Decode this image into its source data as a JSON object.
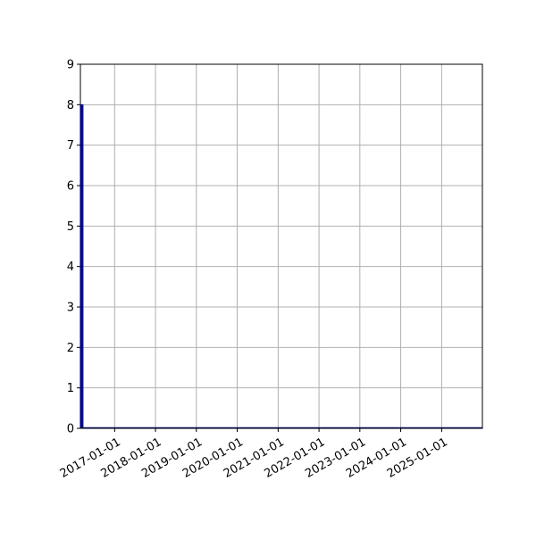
{
  "chart_data": {
    "type": "bar",
    "x": [
      "2016-03-01"
    ],
    "values": [
      8
    ],
    "xlim": [
      "2016-03-01",
      "2025-12-31"
    ],
    "ylim": [
      0,
      9
    ],
    "y_ticks": [
      0,
      1,
      2,
      3,
      4,
      5,
      6,
      7,
      8,
      9
    ],
    "x_ticks": [
      "2017-01-01",
      "2018-01-01",
      "2019-01-01",
      "2020-01-01",
      "2021-01-01",
      "2022-01-01",
      "2023-01-01",
      "2024-01-01",
      "2025-01-01"
    ],
    "grid": true,
    "bar_color": "#0000cc",
    "bar_edge_color": "#000080"
  }
}
